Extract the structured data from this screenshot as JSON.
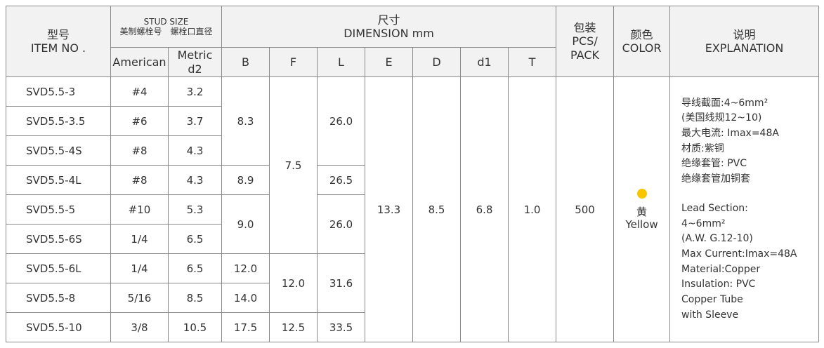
{
  "header": {
    "item": [
      "型号",
      "ITEM NO ."
    ],
    "stud": [
      "STUD SIZE",
      "美制螺栓号　螺栓口直径"
    ],
    "dimension": [
      "尺寸",
      "DIMENSION mm"
    ],
    "pack": [
      "包装",
      "PCS/",
      "PACK"
    ],
    "color": [
      "颜色",
      "COLOR"
    ],
    "explanation": [
      "说明",
      "EXPLANATION"
    ],
    "american": "American",
    "metric": [
      "Metric",
      "d2"
    ],
    "dims": [
      "B",
      "F",
      "L",
      "E",
      "D",
      "d1",
      "T"
    ]
  },
  "table": {
    "rows": [
      [
        "SVD5.5-3",
        "#4",
        "3.2"
      ],
      [
        "SVD5.5-3.5",
        "#6",
        "3.7"
      ],
      [
        "SVD5.5-4S",
        "#8",
        "4.3"
      ],
      [
        "SVD5.5-4L",
        "#8",
        "4.3"
      ],
      [
        "SVD5.5-5",
        "#10",
        "5.3"
      ],
      [
        "SVD5.5-6S",
        "1/4",
        "6.5"
      ],
      [
        "SVD5.5-6L",
        "1/4",
        "6.5"
      ],
      [
        "SVD5.5-8",
        "5/16",
        "8.5"
      ],
      [
        "SVD5.5-10",
        "3/8",
        "10.5"
      ]
    ],
    "B": [
      "8.3",
      "8.9",
      "9.0",
      "12.0",
      "14.0",
      "17.5"
    ],
    "F": [
      "7.5",
      "12.0",
      "12.5"
    ],
    "L": [
      "26.0",
      "26.5",
      "26.0",
      "31.6",
      "33.5"
    ],
    "E": "13.3",
    "D": "8.5",
    "d1": "6.8",
    "T": "1.0",
    "pack": "500",
    "color": [
      "黄",
      "Yellow"
    ],
    "explanation_cn": [
      "导线截面:4~6mm²",
      "(美国线规12~10)",
      "最大电流: Imax=48A",
      "材质:紫铜",
      "绝缘套管: PVC",
      "绝缘套管加铜套"
    ],
    "explanation_en": [
      "Lead Section:",
      "4~6mm²",
      "(A.W. G.12-10)",
      "Max Current:Imax=48A",
      "Material:Copper",
      "Insulation: PVC",
      "Copper Tube",
      "with Sleeve"
    ]
  }
}
